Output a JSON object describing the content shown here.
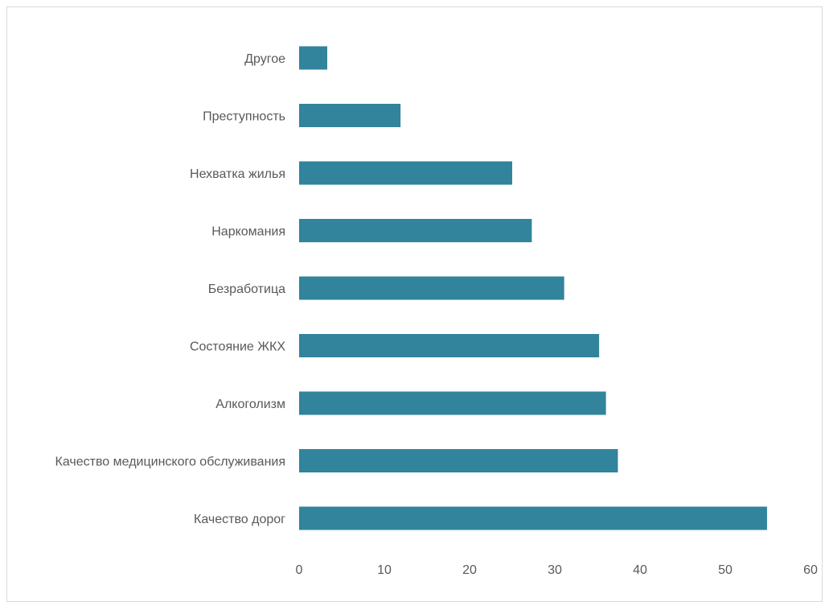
{
  "chart_data": {
    "type": "bar",
    "orientation": "horizontal",
    "title": "",
    "xlabel": "",
    "ylabel": "",
    "categories": [
      "Другое",
      "Преступность",
      "Нехватка жилья",
      "Наркомания",
      "Безработица",
      "Состояние ЖКХ",
      "Алкоголизм",
      "Качество медицинского обслуживания",
      "Качество дорог"
    ],
    "values": [
      3.3,
      11.9,
      25.0,
      27.3,
      31.1,
      35.2,
      36.0,
      37.4,
      54.9
    ],
    "xlim": [
      0,
      60
    ],
    "xticks": [
      0,
      10,
      20,
      30,
      40,
      50,
      60
    ],
    "bar_color": "#31849B",
    "grid": false,
    "legend": "none"
  }
}
